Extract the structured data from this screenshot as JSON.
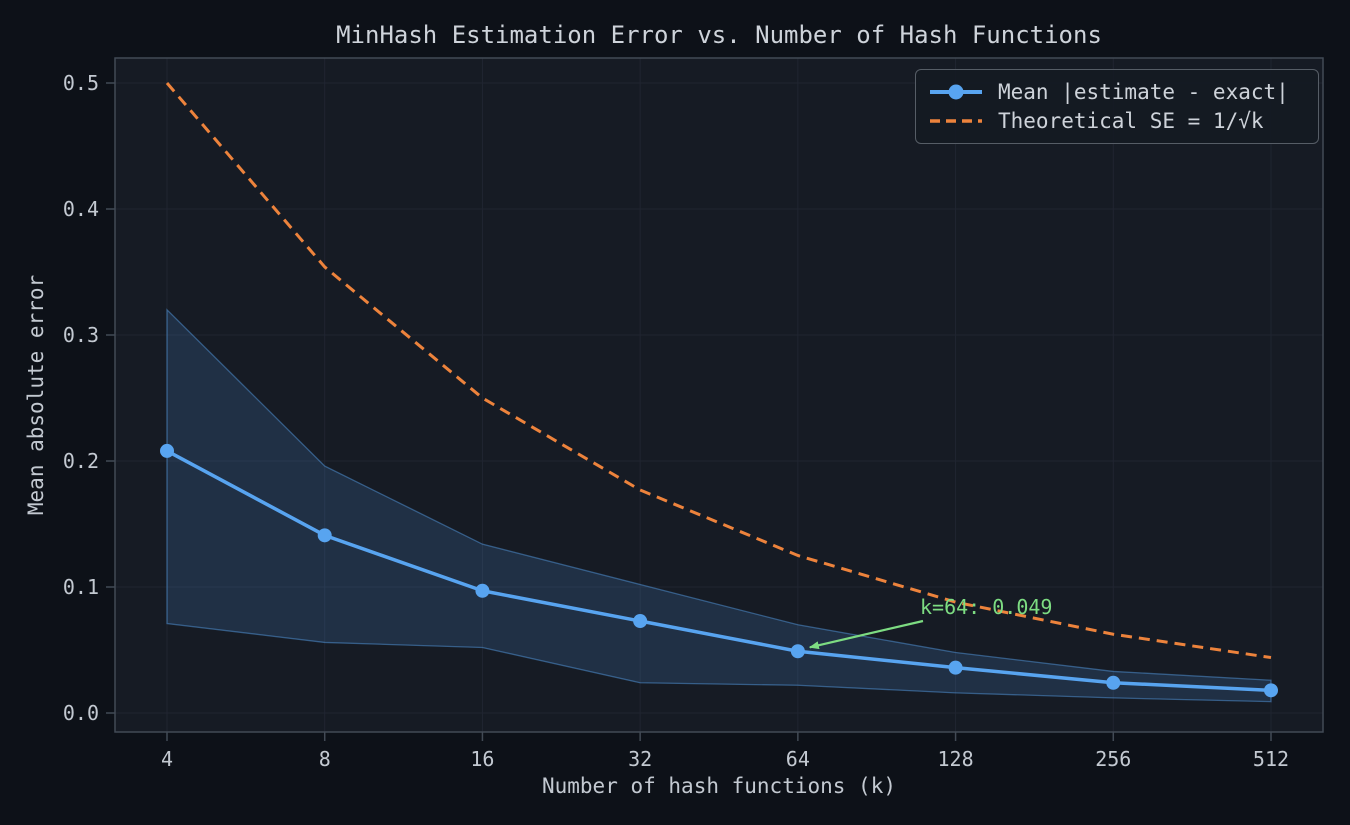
{
  "chart_data": {
    "type": "line",
    "title": "MinHash Estimation Error vs. Number of Hash Functions",
    "xlabel": "Number of hash functions (k)",
    "ylabel": "Mean absolute error",
    "x_scale": "log2",
    "grid": true,
    "legend_position": "upper right",
    "x": [
      4,
      8,
      16,
      32,
      64,
      128,
      256,
      512
    ],
    "x_tick_labels": [
      "4",
      "8",
      "16",
      "32",
      "64",
      "128",
      "256",
      "512"
    ],
    "y_ticks": [
      0.0,
      0.1,
      0.2,
      0.3,
      0.4,
      0.5
    ],
    "y_tick_labels": [
      "0.0",
      "0.1",
      "0.2",
      "0.3",
      "0.4",
      "0.5"
    ],
    "ylim": [
      -0.016,
      0.52
    ],
    "series": [
      {
        "name": "Mean |estimate - exact|",
        "values": [
          0.208,
          0.141,
          0.097,
          0.073,
          0.049,
          0.036,
          0.024,
          0.018
        ],
        "color": "#58a4f0",
        "style": "solid",
        "marker": "circle"
      },
      {
        "name": "Theoretical SE = 1/√k",
        "values": [
          0.5,
          0.354,
          0.25,
          0.177,
          0.125,
          0.088,
          0.0625,
          0.044
        ],
        "color": "#ed833c",
        "style": "dashed",
        "marker": "none"
      }
    ],
    "band": {
      "series": "Mean |estimate - exact|",
      "lower": [
        0.071,
        0.056,
        0.052,
        0.024,
        0.022,
        0.016,
        0.012,
        0.009
      ],
      "upper": [
        0.32,
        0.196,
        0.134,
        0.102,
        0.07,
        0.048,
        0.033,
        0.026
      ],
      "fill_color": "#58a4f0",
      "fill_opacity": 0.16
    },
    "annotation": {
      "text": "k=64: 0.049",
      "target_x": 64,
      "target_y": 0.049,
      "color": "#7ddc82"
    }
  },
  "colors": {
    "figure_bg": "#0d1118",
    "axes_bg": "#161b24",
    "grid": "#202531",
    "spine": "#424a55",
    "tick_label": "#c3c9d1",
    "title": "#ced3da",
    "legend_border": "#565d66"
  }
}
